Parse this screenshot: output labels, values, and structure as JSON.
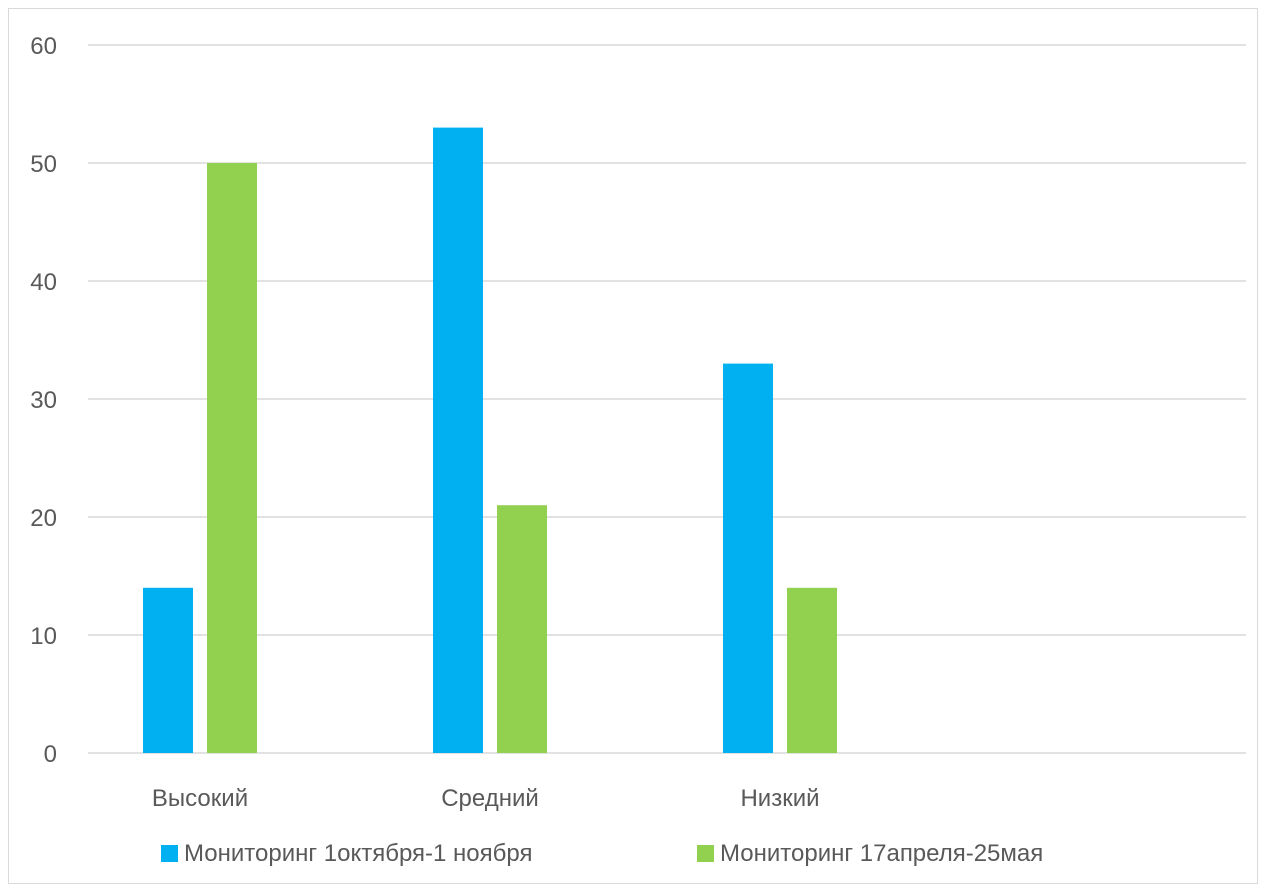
{
  "chart_data": {
    "type": "bar",
    "categories": [
      "Высокий",
      "Средний",
      "Низкий"
    ],
    "series": [
      {
        "name": "Мониторинг 1октября-1 ноября",
        "values": [
          14,
          53,
          33
        ],
        "color": "#00b0f0"
      },
      {
        "name": "Мониторинг 17апреля-25мая",
        "values": [
          50,
          21,
          14
        ],
        "color": "#92d050"
      }
    ],
    "yticks": [
      0,
      10,
      20,
      30,
      40,
      50,
      60
    ],
    "ylim": [
      0,
      60
    ],
    "grid": true,
    "legend_position": "bottom",
    "title": "",
    "xlabel": "",
    "ylabel": ""
  }
}
